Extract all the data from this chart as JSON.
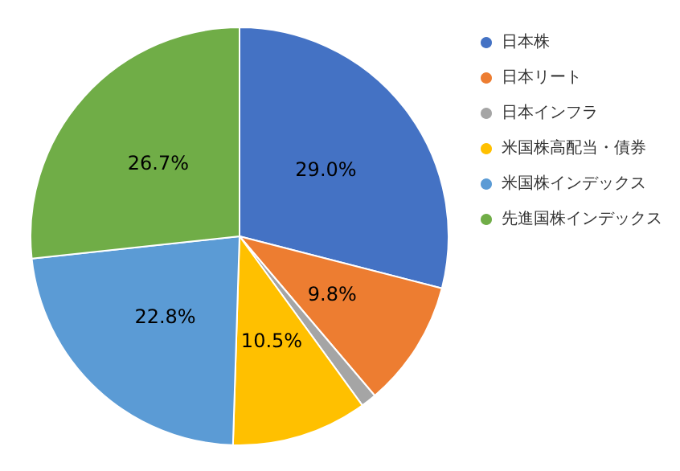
{
  "chart_data": {
    "type": "pie",
    "categories": [
      "日本株",
      "日本リート",
      "日本インフラ",
      "米国株高配当・債券",
      "米国株インデックス",
      "先進国株インデックス"
    ],
    "values": [
      29.0,
      9.8,
      1.2,
      10.5,
      22.8,
      26.7
    ],
    "colors": [
      "#4472c4",
      "#ed7d31",
      "#a5a5a5",
      "#ffc000",
      "#5b9bd5",
      "#70ad47"
    ],
    "value_labels": [
      "29.0%",
      "9.8%",
      null,
      "10.5%",
      "22.8%",
      "26.7%"
    ],
    "legend": "top right"
  }
}
